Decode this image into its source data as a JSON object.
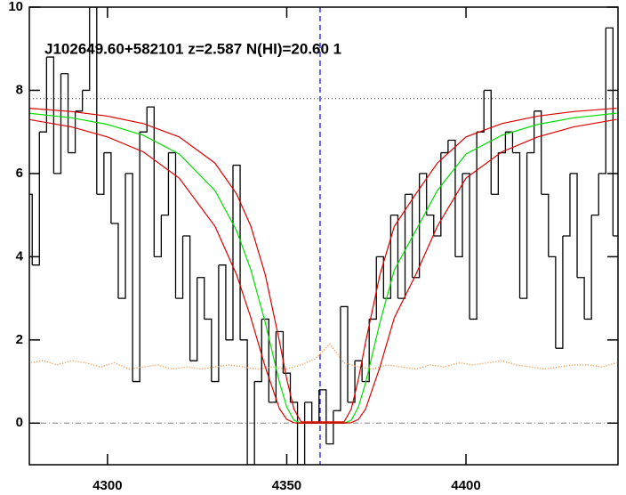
{
  "chart_data": {
    "type": "line",
    "title": "J102649.60+582101 z=2.587 N(HI)=20.60 1",
    "xlim": [
      4278.2,
      4442.4
    ],
    "ylim": [
      -1,
      10
    ],
    "xticks": [
      4300,
      4350,
      4400
    ],
    "yticks": [
      0,
      2,
      4,
      6,
      8,
      10
    ],
    "series": [
      {
        "color": "#000000",
        "style": "step",
        "x": [
          4278,
          4280,
          4282,
          4284,
          4286,
          4288,
          4290,
          4292,
          4294,
          4296,
          4298,
          4300,
          4302,
          4304,
          4306,
          4308,
          4310,
          4312,
          4314,
          4316,
          4318,
          4320,
          4322,
          4324,
          4326,
          4328,
          4330,
          4332,
          4334,
          4336,
          4338,
          4340,
          4342,
          4344,
          4346,
          4348,
          4350,
          4352,
          4354,
          4356,
          4358,
          4360,
          4362,
          4364,
          4366,
          4368,
          4370,
          4372,
          4374,
          4376,
          4378,
          4380,
          4382,
          4384,
          4386,
          4388,
          4390,
          4392,
          4394,
          4396,
          4398,
          4400,
          4402,
          4404,
          4406,
          4408,
          4410,
          4412,
          4414,
          4416,
          4418,
          4420,
          4422,
          4424,
          4426,
          4428,
          4430,
          4432,
          4434,
          4436,
          4438,
          4440,
          4442
        ],
        "values": [
          5.5,
          3.8,
          7.0,
          8.8,
          6.0,
          8.4,
          6.5,
          7.5,
          8.0,
          10.0,
          5.5,
          6.5,
          4.8,
          3.0,
          6.0,
          1.0,
          7.0,
          7.6,
          4.0,
          5.0,
          6.5,
          3.0,
          4.5,
          1.5,
          3.5,
          2.5,
          1.0,
          3.8,
          2.0,
          6.2,
          2.0,
          -1.0,
          1.0,
          2.5,
          0.5,
          2.2,
          1.2,
          0.5,
          -1.0,
          0.5,
          0.0,
          0.8,
          -0.5,
          0.3,
          2.8,
          0.5,
          1.5,
          1.0,
          2.5,
          4.0,
          3.0,
          5.0,
          3.0,
          5.5,
          3.5,
          6.0,
          5.0,
          4.5,
          6.5,
          6.8,
          4.0,
          6.0,
          2.5,
          7.0,
          8.0,
          5.5,
          6.5,
          7.0,
          6.5,
          3.0,
          6.5,
          7.5,
          5.5,
          4.0,
          1.8,
          4.5,
          6.0,
          3.5,
          2.5,
          5.0,
          6.0,
          9.5,
          4.5
        ]
      },
      {
        "color": "#ff8c3a",
        "style": "dotted",
        "x": [
          4278,
          4282,
          4286,
          4290,
          4294,
          4298,
          4302,
          4306,
          4310,
          4314,
          4318,
          4322,
          4326,
          4330,
          4334,
          4338,
          4342,
          4346,
          4350,
          4354,
          4358,
          4362,
          4366,
          4370,
          4374,
          4378,
          4382,
          4386,
          4390,
          4394,
          4398,
          4402,
          4406,
          4410,
          4414,
          4418,
          4422,
          4426,
          4430,
          4434,
          4438,
          4442
        ],
        "values": [
          1.45,
          1.5,
          1.4,
          1.5,
          1.45,
          1.35,
          1.45,
          1.3,
          1.35,
          1.4,
          1.3,
          1.35,
          1.3,
          1.35,
          1.4,
          1.35,
          1.3,
          1.35,
          1.3,
          1.4,
          1.55,
          1.9,
          1.45,
          1.35,
          1.3,
          1.4,
          1.35,
          1.3,
          1.4,
          1.35,
          1.45,
          1.4,
          1.45,
          1.5,
          1.4,
          1.35,
          1.3,
          1.35,
          1.4,
          1.4,
          1.35,
          1.45
        ]
      },
      {
        "color": "#00dd00",
        "style": "solid",
        "x": [
          4278,
          4290,
          4300,
          4310,
          4320,
          4330,
          4336,
          4340,
          4344,
          4348,
          4350,
          4352,
          4354,
          4366,
          4368,
          4370,
          4372,
          4376,
          4380,
          4386,
          4392,
          4400,
          4410,
          4420,
          4430,
          4442
        ],
        "values": [
          7.45,
          7.34,
          7.18,
          6.92,
          6.47,
          5.59,
          4.63,
          3.68,
          2.42,
          0.97,
          0.39,
          0.07,
          0.0,
          0.0,
          0.07,
          0.39,
          0.97,
          2.42,
          3.68,
          4.63,
          5.59,
          6.47,
          6.92,
          7.18,
          7.34,
          7.45
        ]
      },
      {
        "color": "#dd0000",
        "style": "solid",
        "x": [
          4278,
          4290,
          4300,
          4310,
          4320,
          4330,
          4336,
          4340,
          4344,
          4348,
          4350,
          4352,
          4354,
          4366,
          4368,
          4370,
          4372,
          4376,
          4380,
          4386,
          4392,
          4400,
          4410,
          4420,
          4430,
          4442
        ],
        "values": [
          7.57,
          7.49,
          7.38,
          7.2,
          6.88,
          6.25,
          5.51,
          4.73,
          3.57,
          1.95,
          1.06,
          0.34,
          0.03,
          0.03,
          0.34,
          1.06,
          1.95,
          3.57,
          4.73,
          5.51,
          6.25,
          6.88,
          7.2,
          7.38,
          7.49,
          7.57
        ]
      },
      {
        "color": "#dd0000",
        "style": "solid",
        "x": [
          4278,
          4290,
          4300,
          4310,
          4320,
          4330,
          4336,
          4340,
          4344,
          4348,
          4350,
          4352,
          4354,
          4366,
          4368,
          4370,
          4372,
          4376,
          4380,
          4386,
          4392,
          4400,
          4410,
          4420,
          4430,
          4442
        ],
        "values": [
          7.3,
          7.12,
          6.88,
          6.52,
          5.89,
          4.73,
          3.57,
          2.53,
          1.35,
          0.34,
          0.09,
          0.01,
          0.0,
          0.0,
          0.01,
          0.09,
          0.34,
          1.35,
          2.53,
          3.57,
          4.73,
          5.89,
          6.52,
          6.88,
          7.12,
          7.3
        ]
      }
    ],
    "hlines": [
      {
        "value": 7.8,
        "color": "#cc00cc",
        "dash": "dot"
      },
      {
        "value": 0,
        "color": "#999999",
        "dash": "dashdot"
      }
    ],
    "vlines": [
      {
        "value": 4359.3,
        "color": "#0000ff",
        "dash": "dash"
      }
    ]
  }
}
